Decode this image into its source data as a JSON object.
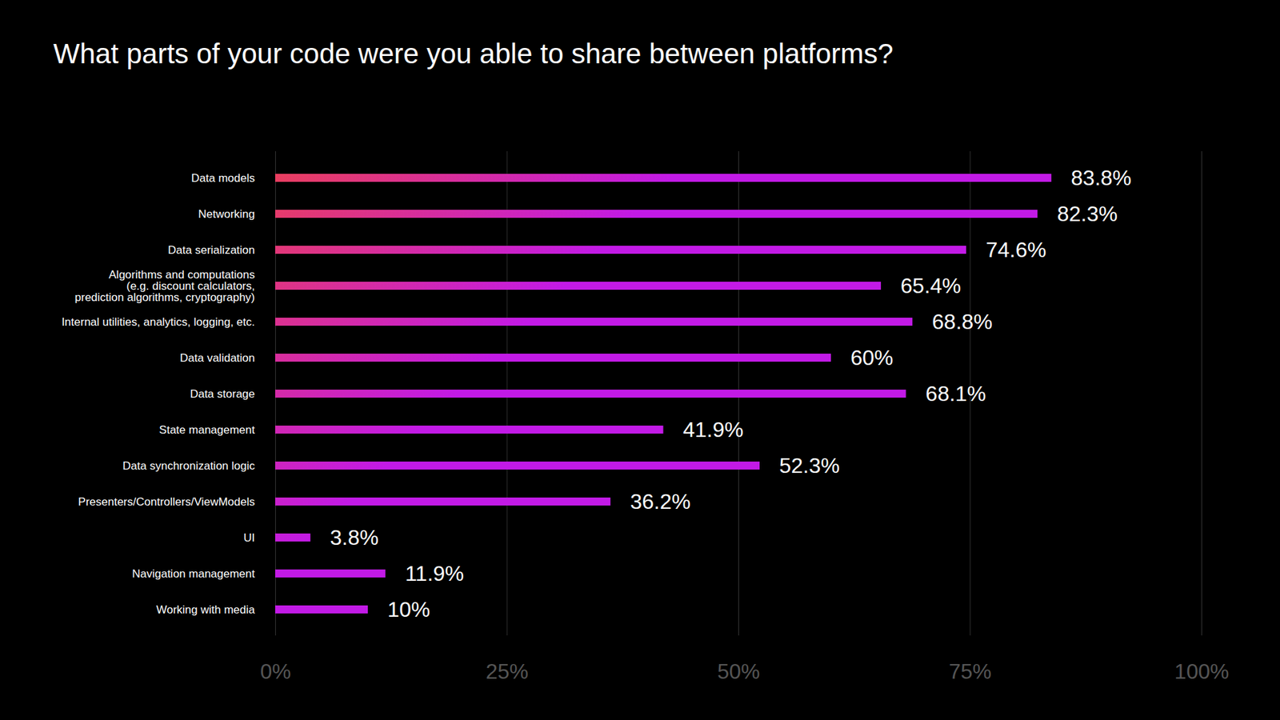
{
  "chart_data": {
    "type": "bar",
    "title": "What parts of your code were you able to share between platforms?",
    "orientation": "horizontal",
    "categories": [
      "Data models",
      "Networking",
      "Data serialization",
      "Algorithms and computations\n(e.g. discount calculators,\nprediction algorithms, cryptography)",
      "Internal utilities, analytics, logging, etc.",
      "Data validation",
      "Data storage",
      "State management",
      "Data synchronization logic",
      "Presenters/Controllers/ViewModels",
      "UI",
      "Navigation management",
      "Working with media"
    ],
    "values": [
      83.8,
      82.3,
      74.6,
      65.4,
      68.8,
      60,
      68.1,
      41.9,
      52.3,
      36.2,
      3.8,
      11.9,
      10
    ],
    "value_labels": [
      "83.8%",
      "82.3%",
      "74.6%",
      "65.4%",
      "68.8%",
      "60%",
      "68.1%",
      "41.9%",
      "52.3%",
      "36.2%",
      "3.8%",
      "11.9%",
      "10%"
    ],
    "data_labels": true,
    "color": "#c21ae6",
    "xlim": [
      0,
      100
    ],
    "xticks": [
      {
        "value": 0,
        "label": "0%"
      },
      {
        "value": 25,
        "label": "25%"
      },
      {
        "value": 50,
        "label": "50%"
      },
      {
        "value": 75,
        "label": "75%"
      },
      {
        "value": 100,
        "label": "100%"
      }
    ],
    "grid": true
  }
}
